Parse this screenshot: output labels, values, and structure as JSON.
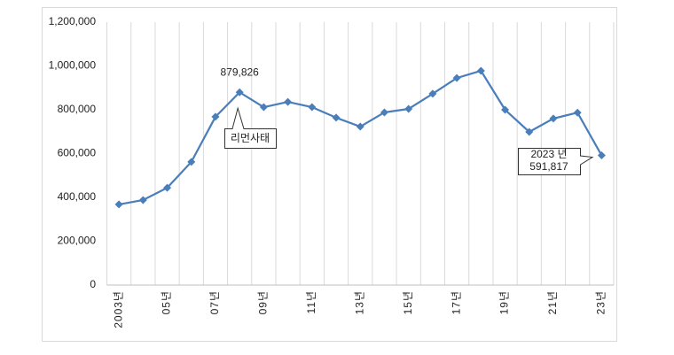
{
  "chart_data": {
    "type": "line",
    "categories": [
      "2003년",
      null,
      "05년",
      null,
      "07년",
      null,
      "09년",
      null,
      "11년",
      null,
      "13년",
      null,
      "15년",
      null,
      "17년",
      null,
      "19년",
      null,
      "21년",
      null,
      "23년"
    ],
    "series": [
      {
        "color": "#4a7ebb",
        "values": [
          368000,
          388000,
          444000,
          562000,
          768000,
          879826,
          812000,
          836000,
          812000,
          764000,
          723000,
          788000,
          804000,
          873000,
          945000,
          978000,
          800000,
          699000,
          760000,
          787000,
          591817
        ],
        "value_labels": [
          null,
          null,
          null,
          null,
          null,
          "879,826",
          null,
          null,
          null,
          null,
          null,
          null,
          null,
          null,
          null,
          null,
          null,
          null,
          null,
          null,
          "591,817"
        ]
      }
    ],
    "annotations": [
      "리먼사태",
      "2023 년"
    ],
    "ylim": [
      0,
      1200000
    ],
    "yticks": [
      0,
      {
        "value": 200000,
        "label": "200,000"
      },
      {
        "value": 400000,
        "label": "400,000"
      },
      {
        "value": 600000,
        "label": "600,000"
      },
      {
        "value": 800000,
        "label": "800,000"
      },
      {
        "value": 1000000,
        "label": "1,000,000"
      },
      {
        "value": 1200000,
        "label": "1,200,000"
      }
    ],
    "grid": "x"
  }
}
